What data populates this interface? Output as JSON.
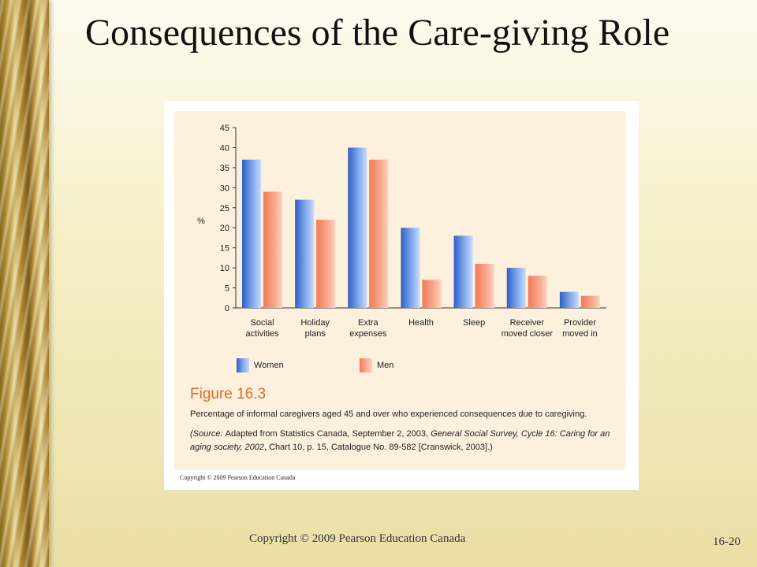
{
  "slide": {
    "title": "Consequences of the Care-giving Role",
    "footer_copyright": "Copyright © 2009 Pearson Education Canada",
    "slide_number": "16-20"
  },
  "figure": {
    "number": "Figure 16.3",
    "caption": "Percentage of informal caregivers aged 45 and over who experienced consequences due to caregiving.",
    "source_line1_a": "(Source: ",
    "source_line1_b": "Adapted from Statistics Canada, September 2, 2003, ",
    "source_line1_c": "General Social Survey, Cycle 16: Caring for an",
    "source_line2_a": "aging society, 2002",
    "source_line2_b": ", Chart 10, p. 15, Catalogue No. 89-582 [Cranswick, 2003].)",
    "copyright": "Copyright © 2009 Pearson Education Canada"
  },
  "chart_data": {
    "type": "bar",
    "title": "",
    "xlabel": "",
    "ylabel": "%",
    "ylim": [
      0,
      45
    ],
    "yticks": [
      0,
      5,
      10,
      15,
      20,
      25,
      30,
      35,
      40,
      45
    ],
    "grid": false,
    "legend_position": "bottom",
    "categories": [
      [
        "Social",
        "activities"
      ],
      [
        "Holiday",
        "plans"
      ],
      [
        "Extra",
        "expenses"
      ],
      [
        "Health"
      ],
      [
        "Sleep"
      ],
      [
        "Receiver",
        "moved closer"
      ],
      [
        "Provider",
        "moved in"
      ]
    ],
    "series": [
      {
        "name": "Women",
        "color": "#4a7fd6",
        "values": [
          37,
          27,
          40,
          20,
          18,
          10,
          4
        ]
      },
      {
        "name": "Men",
        "color": "#f48a6e",
        "values": [
          29,
          22,
          37,
          7,
          11,
          8,
          3
        ]
      }
    ]
  }
}
